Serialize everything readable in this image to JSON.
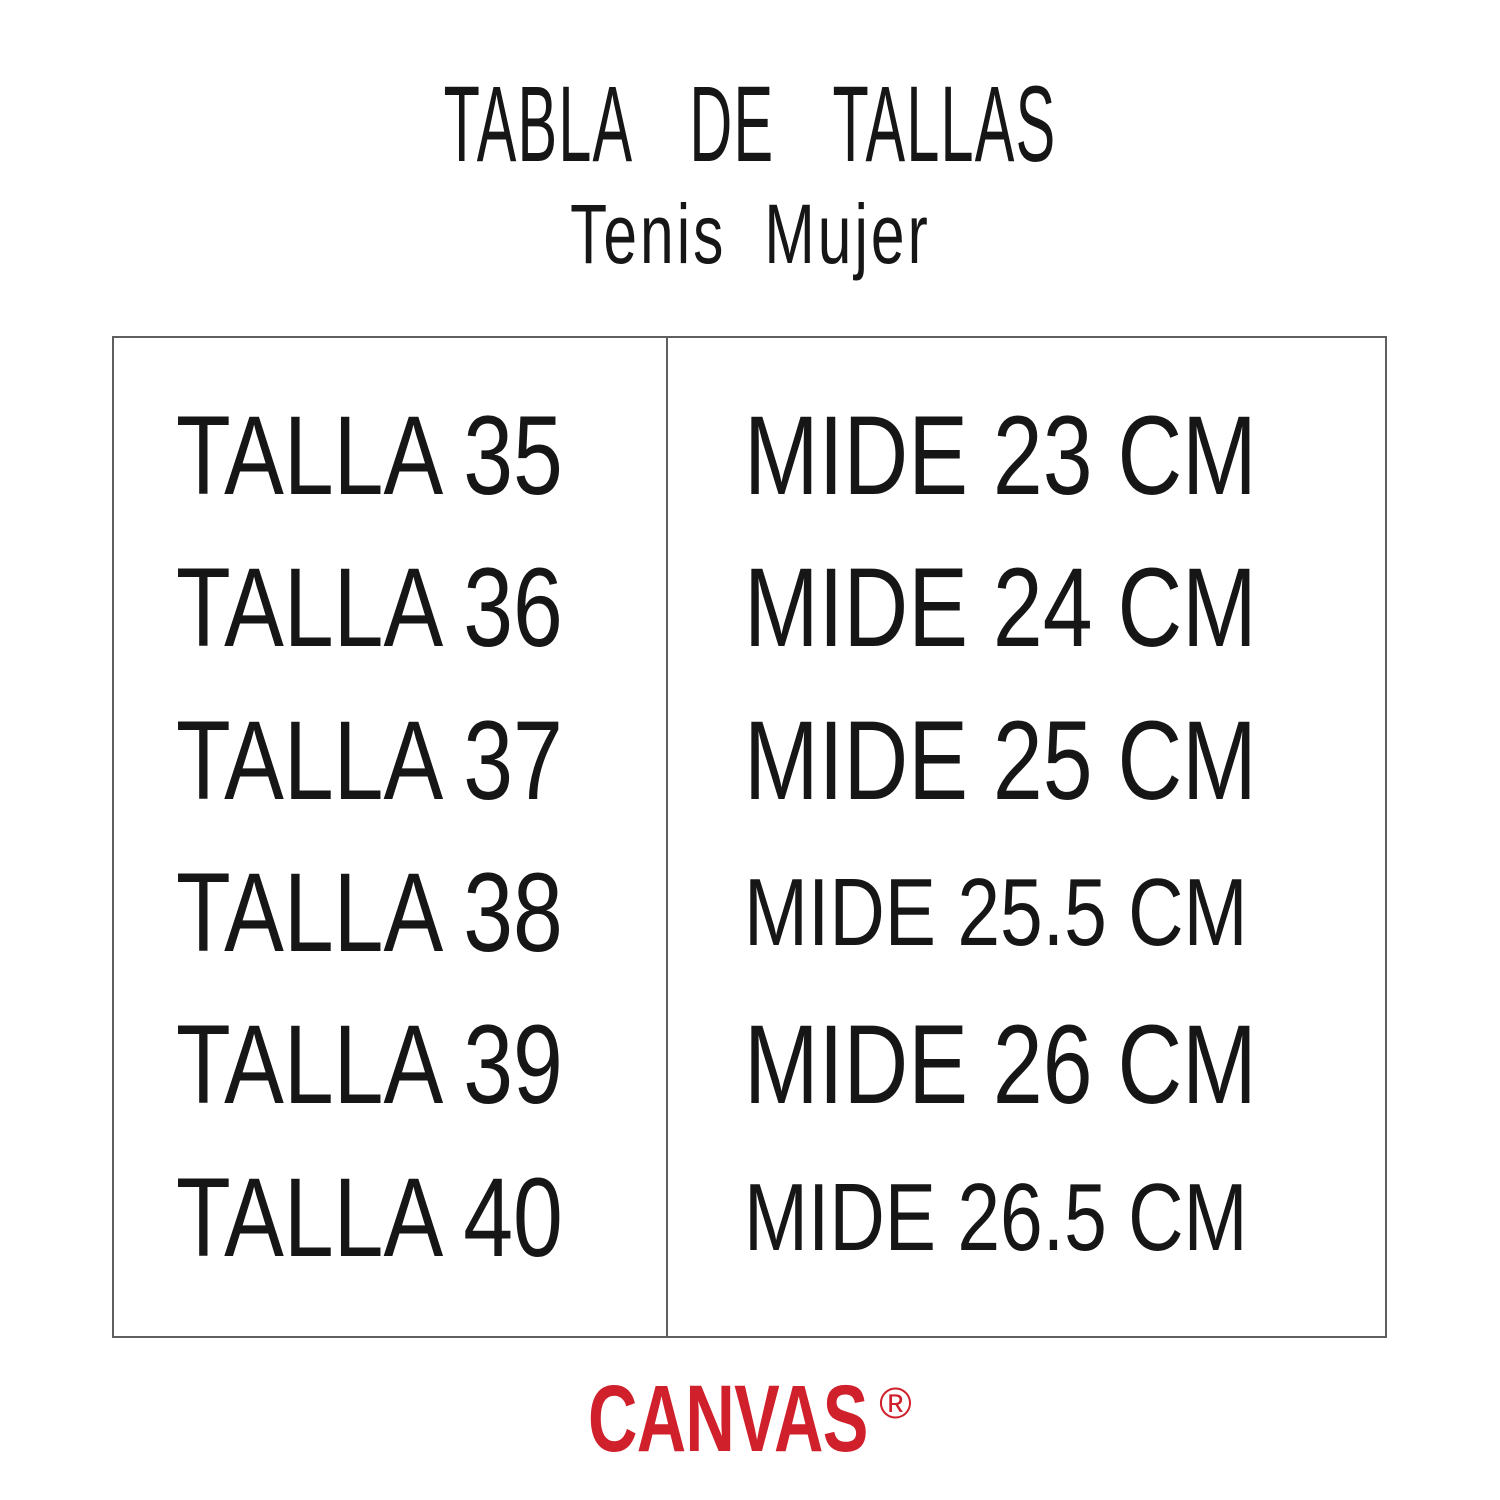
{
  "page": {
    "title": "TABLA DE TALLAS",
    "subtitle": "Tenis Mujer"
  },
  "table": {
    "rows": [
      {
        "size": "TALLA 35",
        "measure": "MIDE 23 CM"
      },
      {
        "size": "TALLA 36",
        "measure": "MIDE 24 CM"
      },
      {
        "size": "TALLA 37",
        "measure": "MIDE 25 CM"
      },
      {
        "size": "TALLA 38",
        "measure": "MIDE 25.5 CM"
      },
      {
        "size": "TALLA 39",
        "measure": "MIDE 26 CM"
      },
      {
        "size": "TALLA 40",
        "measure": "MIDE 26.5 CM"
      }
    ]
  },
  "brand": {
    "name": "CANVAS",
    "registered_mark": "®",
    "color": "#D0202B"
  },
  "colors": {
    "text": "#161616",
    "table_border": "#5f5f5f",
    "background": "#ffffff"
  }
}
